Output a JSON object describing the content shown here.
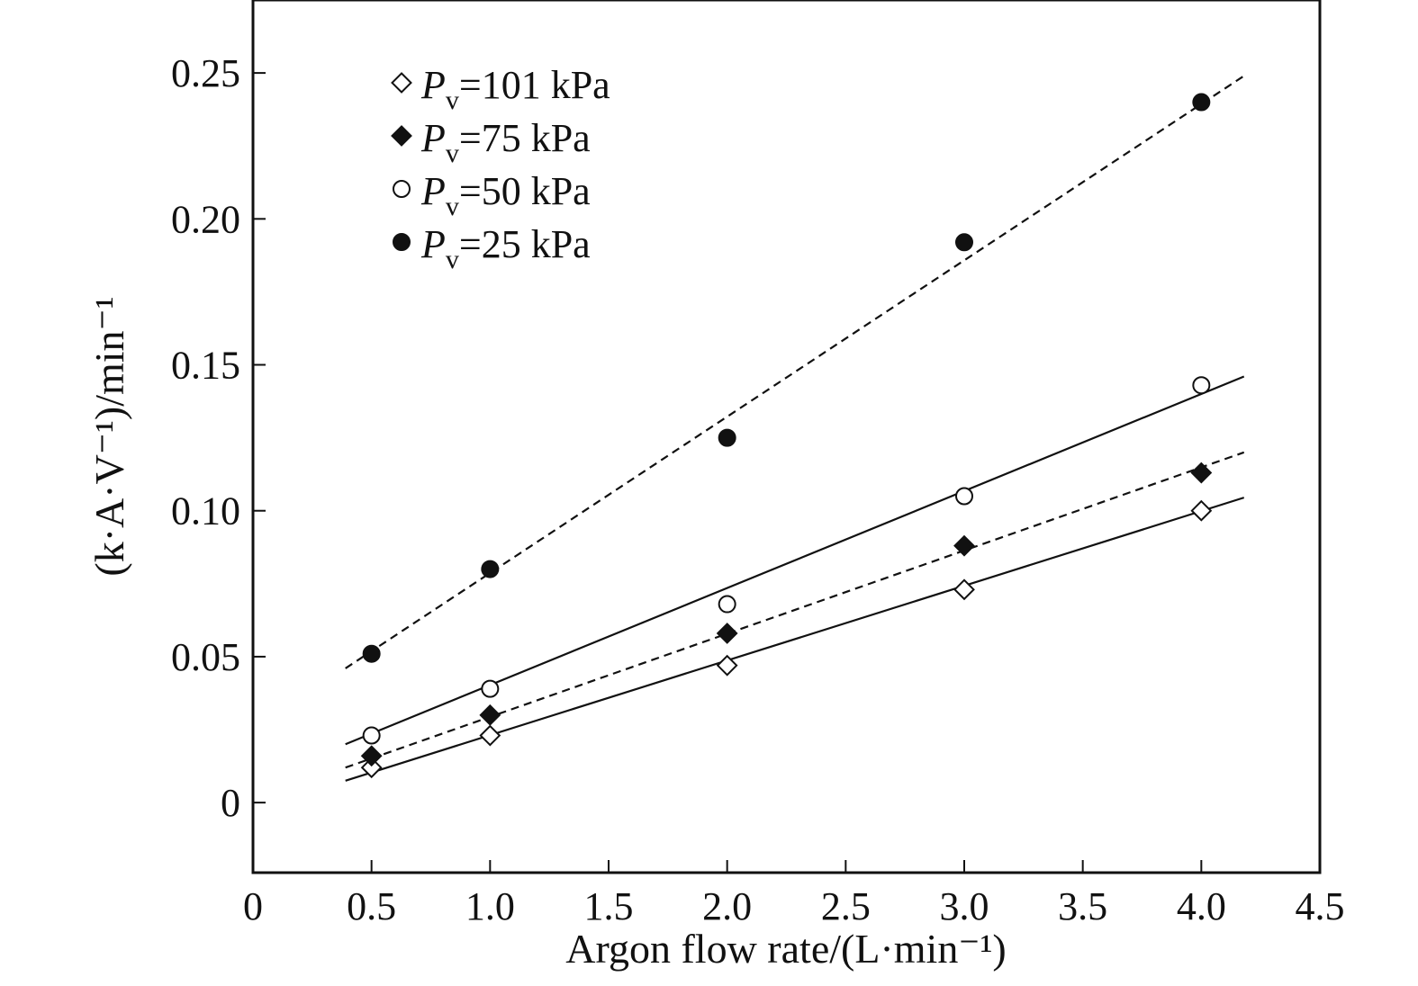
{
  "chart_data": {
    "type": "scatter",
    "xlabel": "Argon flow rate/(L·min⁻¹)",
    "ylabel": "(k·A·V⁻¹)/min⁻¹",
    "xlim": [
      0,
      4.5
    ],
    "ylim": [
      -0.024,
      0.275
    ],
    "x_ticks": [
      0,
      0.5,
      1.0,
      1.5,
      2.0,
      2.5,
      3.0,
      3.5,
      4.0,
      4.5
    ],
    "x_tick_labels": [
      "0",
      "0.5",
      "1.0",
      "1.5",
      "2.0",
      "2.5",
      "3.0",
      "3.5",
      "4.0",
      "4.5"
    ],
    "y_ticks": [
      0,
      0.05,
      0.1,
      0.15,
      0.2,
      0.25
    ],
    "y_tick_labels": [
      "0",
      "0.05",
      "0.10",
      "0.15",
      "0.20",
      "0.25"
    ],
    "grid": false,
    "legend_position": "top-left",
    "series": [
      {
        "name": "Pv=101 kPa",
        "legend_main": "P",
        "legend_sub": "v",
        "legend_rest": "=101 kPa",
        "marker": "diamond-open",
        "line_style": "solid",
        "x": [
          0.5,
          1.0,
          2.0,
          3.0,
          4.0
        ],
        "y": [
          0.012,
          0.023,
          0.047,
          0.073,
          0.1
        ],
        "fit": {
          "x": [
            0.39,
            4.18
          ],
          "y": [
            0.0075,
            0.1045
          ]
        }
      },
      {
        "name": "Pv=75 kPa",
        "legend_main": "P",
        "legend_sub": "v",
        "legend_rest": "=75 kPa",
        "marker": "diamond-filled",
        "line_style": "dashed",
        "x": [
          0.5,
          1.0,
          2.0,
          3.0,
          4.0
        ],
        "y": [
          0.016,
          0.03,
          0.058,
          0.088,
          0.113
        ],
        "fit": {
          "x": [
            0.39,
            4.18
          ],
          "y": [
            0.012,
            0.12
          ]
        }
      },
      {
        "name": "Pv=50 kPa",
        "legend_main": "P",
        "legend_sub": "v",
        "legend_rest": "=50 kPa",
        "marker": "circle-open",
        "line_style": "solid",
        "x": [
          0.5,
          1.0,
          2.0,
          3.0,
          4.0
        ],
        "y": [
          0.023,
          0.039,
          0.068,
          0.105,
          0.143
        ],
        "fit": {
          "x": [
            0.39,
            4.18
          ],
          "y": [
            0.02,
            0.146
          ]
        }
      },
      {
        "name": "Pv=25 kPa",
        "legend_main": "P",
        "legend_sub": "v",
        "legend_rest": "=25 kPa",
        "marker": "circle-filled",
        "line_style": "dashed",
        "x": [
          0.5,
          1.0,
          2.0,
          3.0,
          4.0
        ],
        "y": [
          0.051,
          0.08,
          0.125,
          0.192,
          0.24
        ],
        "fit": {
          "x": [
            0.39,
            4.18
          ],
          "y": [
            0.046,
            0.249
          ]
        }
      }
    ]
  }
}
